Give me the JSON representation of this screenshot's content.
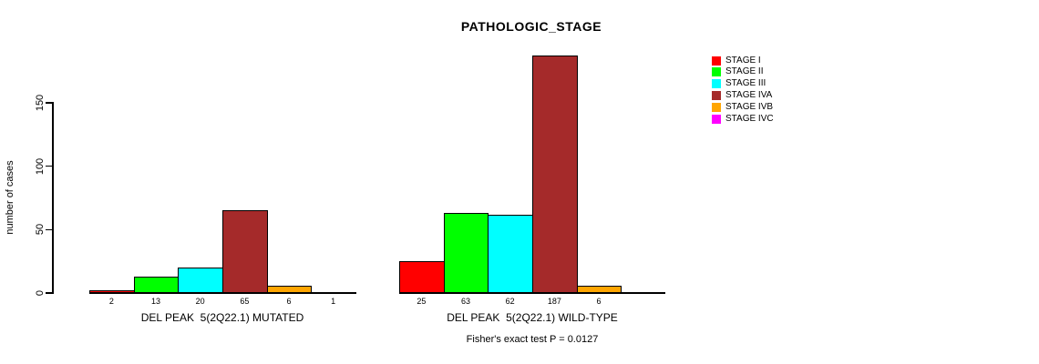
{
  "chart_data": {
    "type": "bar",
    "title": "PATHOLOGIC_STAGE",
    "ylabel": "number of cases",
    "footnote": "Fisher's exact test P = 0.0127",
    "y_ticks": [
      0,
      50,
      100,
      150
    ],
    "ylim": [
      0,
      150
    ],
    "grid": false,
    "legend_position": "right",
    "series": [
      "STAGE I",
      "STAGE II",
      "STAGE III",
      "STAGE IVA",
      "STAGE IVB",
      "STAGE IVC"
    ],
    "colors": [
      "#ff0000",
      "#00ff00",
      "#00ffff",
      "#a52a2a",
      "#ffa500",
      "#ff00ff"
    ],
    "groups": [
      {
        "label": "DEL PEAK  5(2Q22.1) MUTATED",
        "values": [
          2,
          13,
          20,
          65,
          6,
          1
        ]
      },
      {
        "label": "DEL PEAK  5(2Q22.1) WILD-TYPE",
        "values": [
          25,
          63,
          62,
          187,
          6,
          0
        ]
      }
    ],
    "value_labels_shown": true
  }
}
